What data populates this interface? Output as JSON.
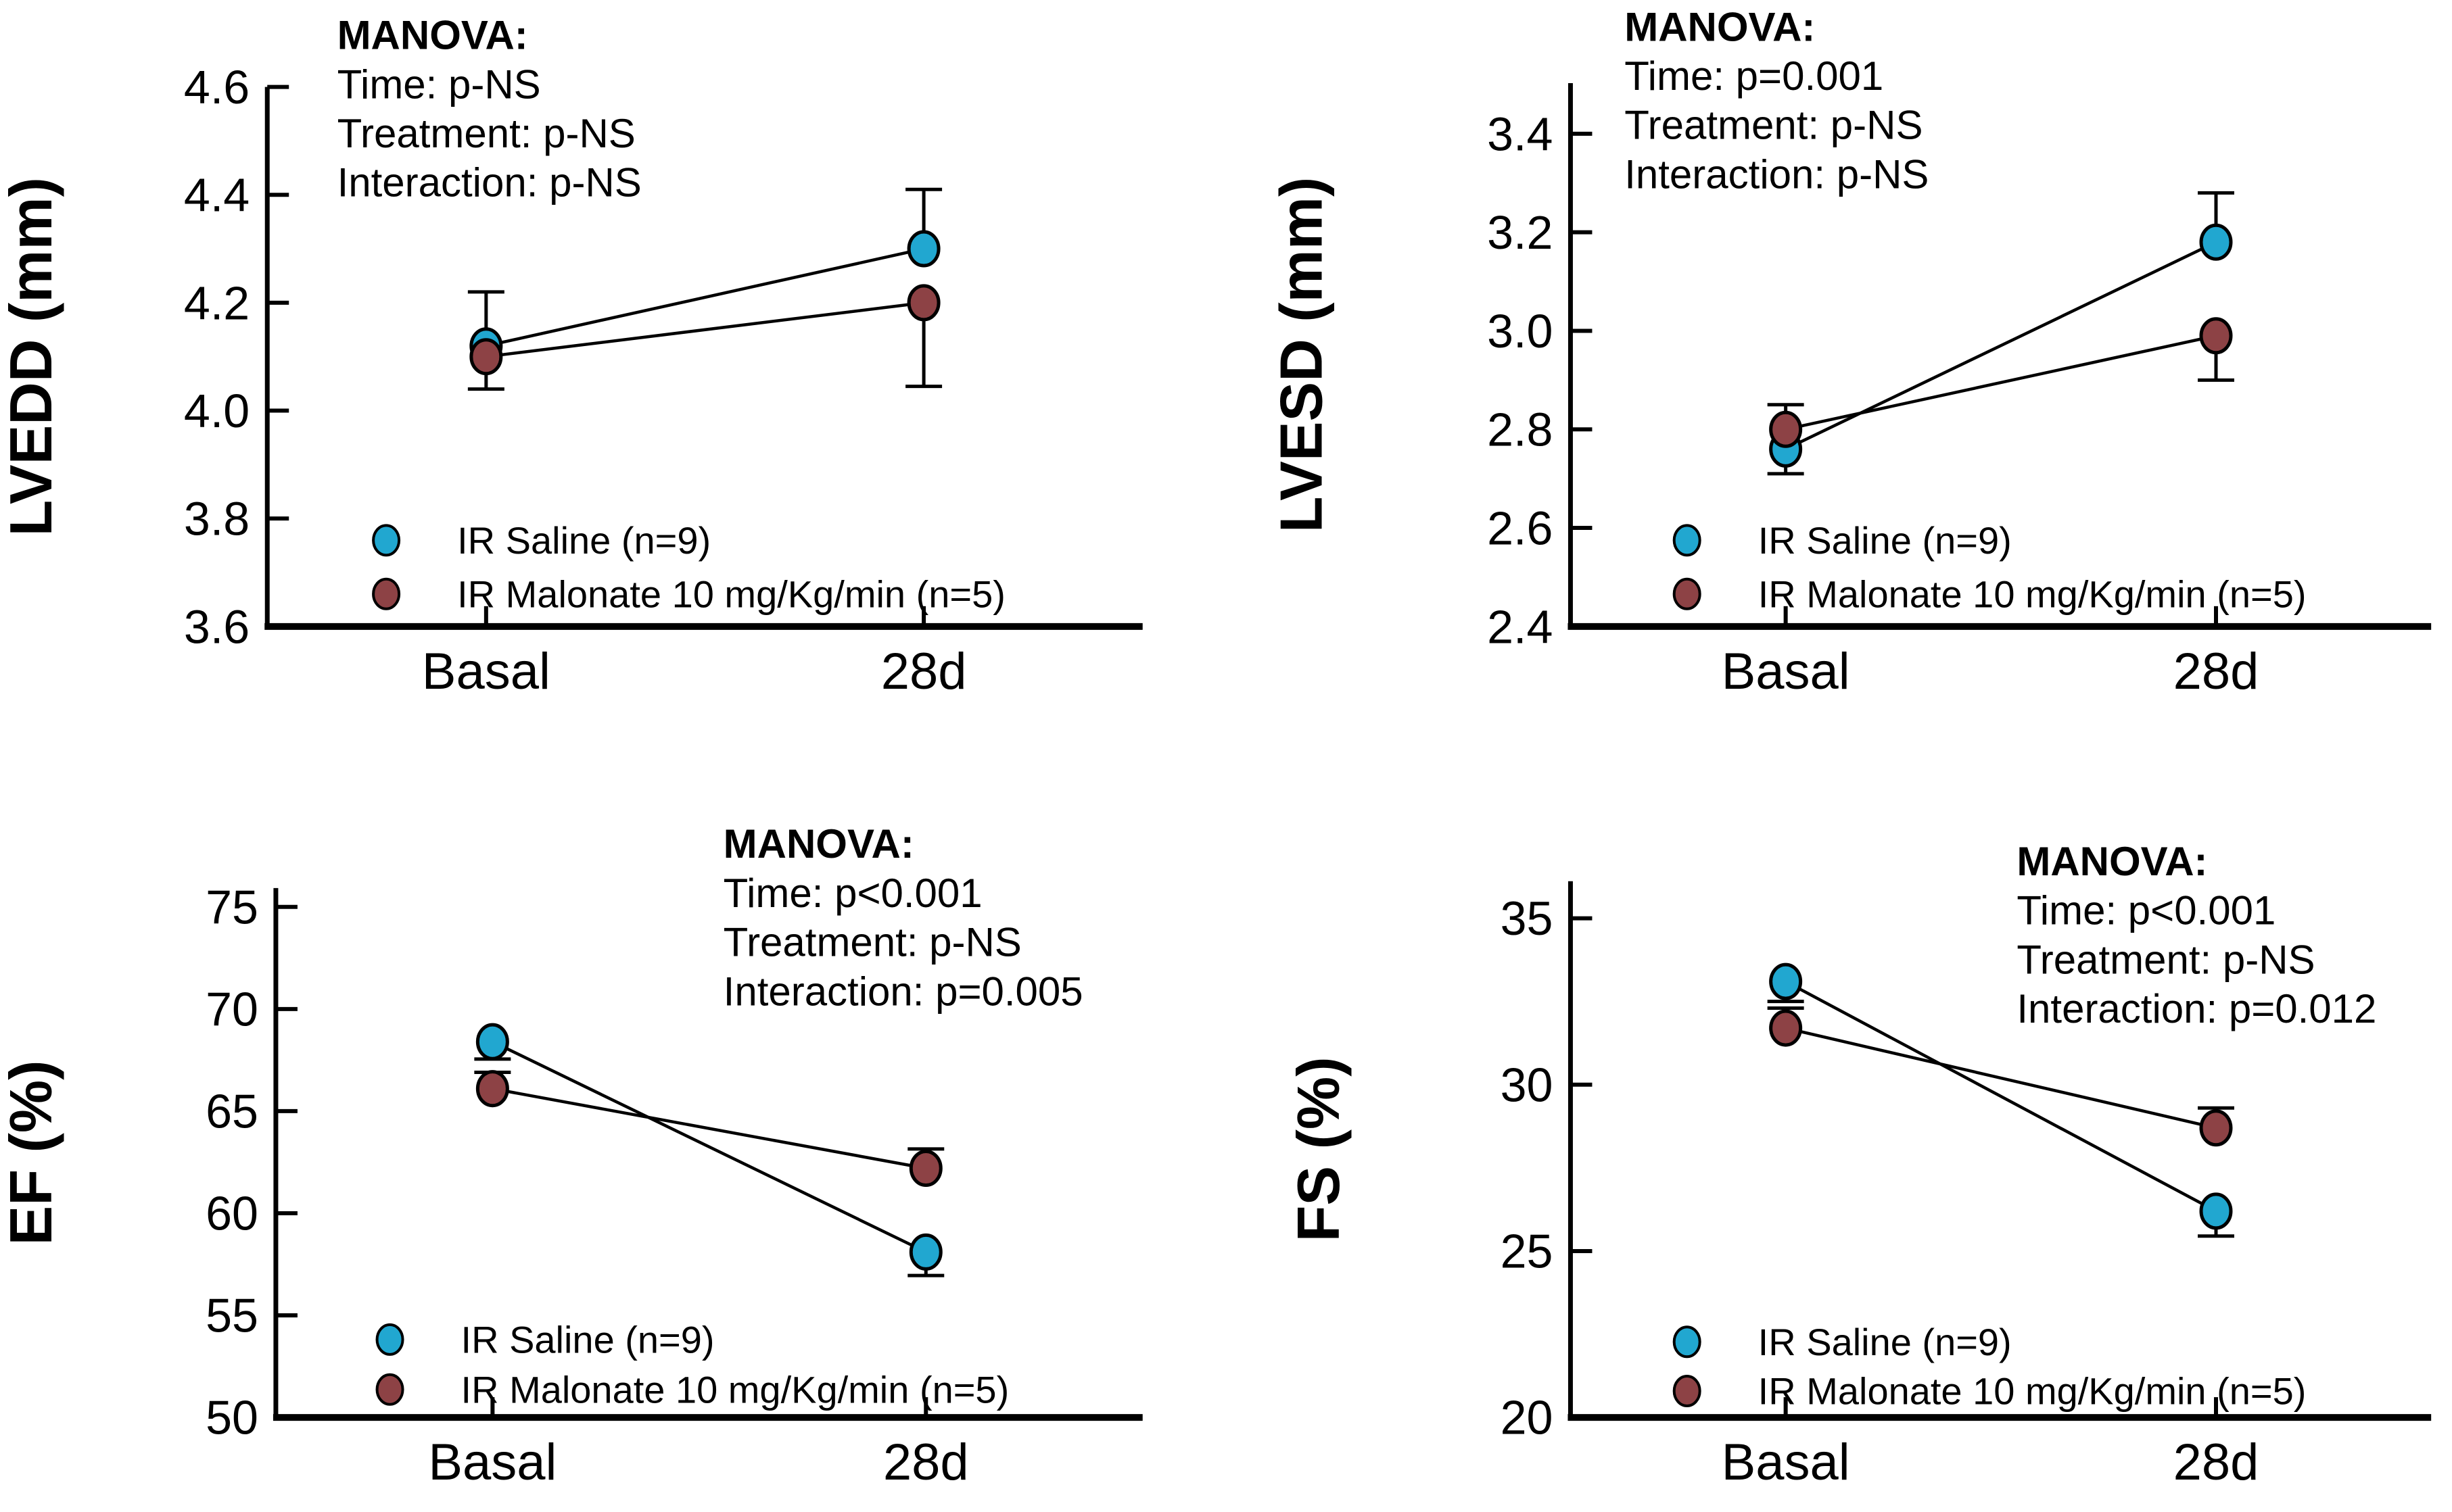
{
  "figure": {
    "background": "#ffffff",
    "description": "Four-panel echocardiography line charts comparing IR Saline vs IR Malonate at Basal and 28d"
  },
  "colors": {
    "saline": "#21a7d0",
    "malonate": "#8d4245",
    "axis": "#000000",
    "text": "#000000",
    "marker_outline": "#000000"
  },
  "legend": {
    "items": [
      {
        "series": "saline",
        "label": "IR Saline (n=9)"
      },
      {
        "series": "malonate",
        "label": "IR Malonate 10 mg/Kg/min (n=5)"
      }
    ]
  },
  "chart_data": [
    {
      "type": "line",
      "id": "lvedd",
      "ylabel": "LVEDD (mm)",
      "categories": [
        "Basal",
        "28d"
      ],
      "ylim": [
        3.6,
        4.6
      ],
      "ytick_values": [
        3.6,
        3.8,
        4.0,
        4.2,
        4.4,
        4.6
      ],
      "ytick_labels": [
        "3.6",
        "3.8",
        "4.0",
        "4.2",
        "4.4",
        "4.6"
      ],
      "grid": false,
      "legend_position": "lower-left",
      "manova": {
        "heading": "MANOVA:",
        "lines": [
          "Time: p-NS",
          "Treatment: p-NS",
          "Interaction: p-NS"
        ]
      },
      "series": [
        {
          "name": "IR Saline (n=9)",
          "color_key": "saline",
          "values": [
            4.12,
            4.3
          ],
          "err_up": [
            0.1,
            0.11
          ],
          "err_down": [
            0,
            0
          ]
        },
        {
          "name": "IR Malonate 10 mg/Kg/min (n=5)",
          "color_key": "malonate",
          "values": [
            4.1,
            4.2
          ],
          "err_up": [
            0,
            0
          ],
          "err_down": [
            0.06,
            0.155
          ]
        }
      ]
    },
    {
      "type": "line",
      "id": "lvesd",
      "ylabel": "LVESD (mm)",
      "categories": [
        "Basal",
        "28d"
      ],
      "ylim": [
        2.4,
        3.5
      ],
      "ytick_values": [
        2.4,
        2.6,
        2.8,
        3.0,
        3.2,
        3.4
      ],
      "ytick_labels": [
        "2.4",
        "2.6",
        "2.8",
        "3.0",
        "3.2",
        "3.4"
      ],
      "grid": false,
      "legend_position": "lower-left",
      "manova": {
        "heading": "MANOVA:",
        "lines": [
          "Time: p=0.001",
          "Treatment: p-NS",
          "Interaction: p-NS"
        ]
      },
      "series": [
        {
          "name": "IR Saline (n=9)",
          "color_key": "saline",
          "values": [
            2.76,
            3.18
          ],
          "err_up": [
            0,
            0.1
          ],
          "err_down": [
            0.05,
            0
          ]
        },
        {
          "name": "IR Malonate 10 mg/Kg/min (n=5)",
          "color_key": "malonate",
          "values": [
            2.8,
            2.99
          ],
          "err_up": [
            0.05,
            0
          ],
          "err_down": [
            0,
            0.09
          ]
        }
      ]
    },
    {
      "type": "line",
      "id": "ef",
      "ylabel": "EF (%)",
      "categories": [
        "Basal",
        "28d"
      ],
      "ylim": [
        50,
        76
      ],
      "ytick_values": [
        50,
        55,
        60,
        65,
        70,
        75
      ],
      "ytick_labels": [
        "50",
        "55",
        "60",
        "65",
        "70",
        "75"
      ],
      "grid": false,
      "legend_position": "lower-left",
      "manova": {
        "heading": "MANOVA:",
        "lines": [
          "Time: p<0.001",
          "Treatment: p-NS",
          "Interaction: p=0.005"
        ]
      },
      "series": [
        {
          "name": "IR Saline (n=9)",
          "color_key": "saline",
          "values": [
            68.4,
            58.1
          ],
          "err_up": [
            0,
            0
          ],
          "err_down": [
            0.85,
            1.15
          ]
        },
        {
          "name": "IR Malonate 10 mg/Kg/min (n=5)",
          "color_key": "malonate",
          "values": [
            66.1,
            62.2
          ],
          "err_up": [
            0.8,
            0.95
          ],
          "err_down": [
            0,
            0
          ]
        }
      ]
    },
    {
      "type": "line",
      "id": "fs",
      "ylabel": "FS (%)",
      "categories": [
        "Basal",
        "28d"
      ],
      "ylim": [
        20,
        36
      ],
      "ytick_values": [
        20,
        25,
        30,
        35
      ],
      "ytick_labels": [
        "20",
        "25",
        "30",
        "35"
      ],
      "grid": false,
      "legend_position": "lower-left",
      "manova": {
        "heading": "MANOVA:",
        "lines": [
          "Time: p<0.001",
          "Treatment: p-NS",
          "Interaction: p=0.012"
        ]
      },
      "series": [
        {
          "name": "IR Saline (n=9)",
          "color_key": "saline",
          "values": [
            33.1,
            26.2
          ],
          "err_up": [
            0,
            0
          ],
          "err_down": [
            0.6,
            0.75
          ]
        },
        {
          "name": "IR Malonate 10 mg/Kg/min (n=5)",
          "color_key": "malonate",
          "values": [
            31.7,
            28.7
          ],
          "err_up": [
            0.6,
            0.6
          ],
          "err_down": [
            0,
            0
          ]
        }
      ]
    }
  ]
}
